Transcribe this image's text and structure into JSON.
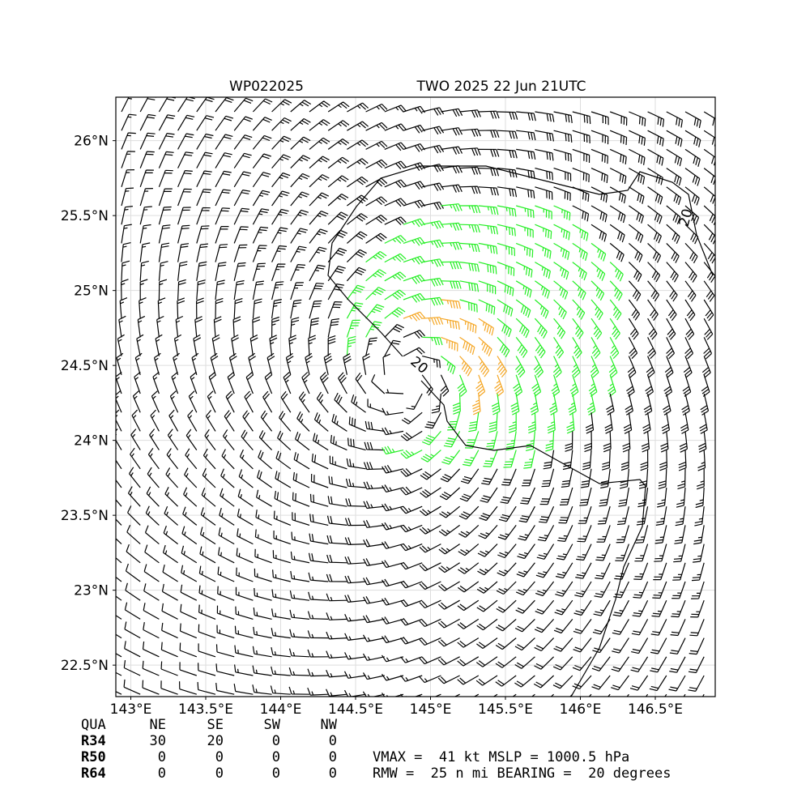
{
  "title_left": "WP022025",
  "title_right": "TWO 2025 22 Jun 21UTC",
  "map": {
    "xlim": [
      142.9,
      146.9
    ],
    "ylim": [
      22.29,
      26.29
    ],
    "xticks": [
      {
        "value": 143,
        "label": "143°E"
      },
      {
        "value": 143.5,
        "label": "143.5°E"
      },
      {
        "value": 144,
        "label": "144°E"
      },
      {
        "value": 144.5,
        "label": "144.5°E"
      },
      {
        "value": 145,
        "label": "145°E"
      },
      {
        "value": 145.5,
        "label": "145.5°E"
      },
      {
        "value": 146,
        "label": "146°E"
      },
      {
        "value": 146.5,
        "label": "146.5°E"
      }
    ],
    "yticks": [
      {
        "value": 22.5,
        "label": "22.5°N"
      },
      {
        "value": 23,
        "label": "23°N"
      },
      {
        "value": 23.5,
        "label": "23.5°N"
      },
      {
        "value": 24,
        "label": "24°N"
      },
      {
        "value": 24.5,
        "label": "24.5°N"
      },
      {
        "value": 25,
        "label": "25°N"
      },
      {
        "value": 25.5,
        "label": "25.5°N"
      },
      {
        "value": 26,
        "label": "26°N"
      }
    ],
    "contour_labels": [
      "20",
      "20"
    ]
  },
  "radii_table": {
    "header": [
      "QUA",
      "NE",
      "SE",
      "SW",
      "NW"
    ],
    "rows": [
      [
        "R34",
        "30",
        "20",
        "0",
        "0"
      ],
      [
        "R50",
        "0",
        "0",
        "0",
        "0"
      ],
      [
        "R64",
        "0",
        "0",
        "0",
        "0"
      ]
    ]
  },
  "summary": [
    "VMAX =  41 kt MSLP = 1000.5 hPa",
    "RMW =  25 n mi BEARING =  20 degrees"
  ]
}
